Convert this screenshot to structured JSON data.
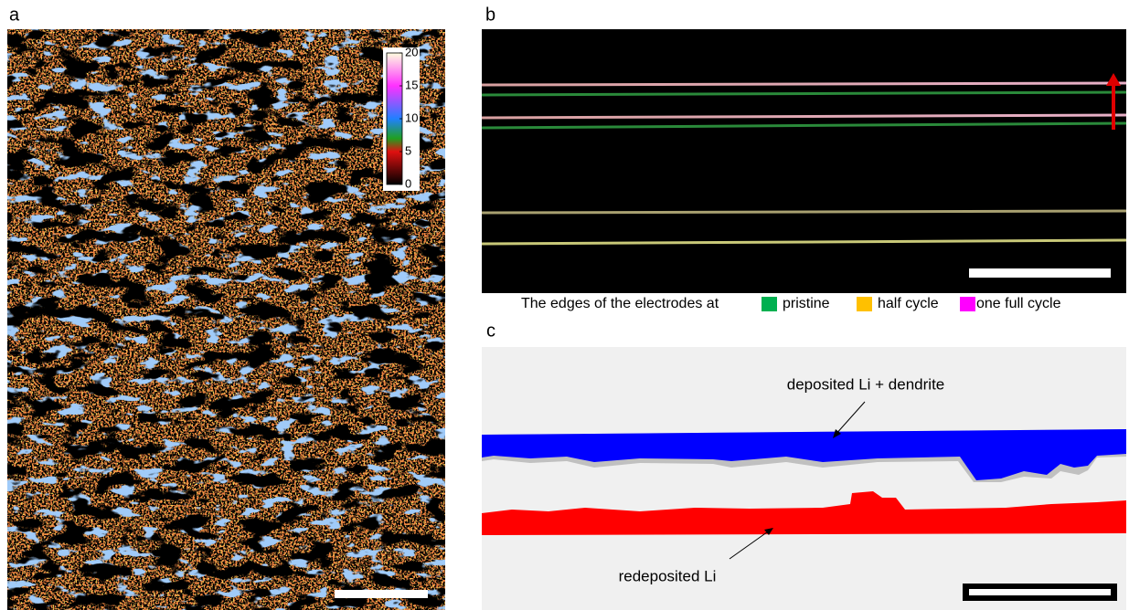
{
  "panels": {
    "a": {
      "label": "a",
      "colorbar": {
        "lim": [
          0,
          20
        ],
        "ticks": [
          0,
          5,
          10,
          15,
          20
        ]
      }
    },
    "b": {
      "label": "b",
      "legend": {
        "caption": "The edges of the electrodes at",
        "items": [
          {
            "name": "pristine",
            "color": "#00b050"
          },
          {
            "name": "half cycle",
            "color": "#ffc000"
          },
          {
            "name": "one full cycle",
            "color": "#ff00ff"
          }
        ]
      }
    },
    "c": {
      "label": "c",
      "annotations": [
        "deposited Li + dendrite",
        "redeposited Li"
      ]
    }
  }
}
